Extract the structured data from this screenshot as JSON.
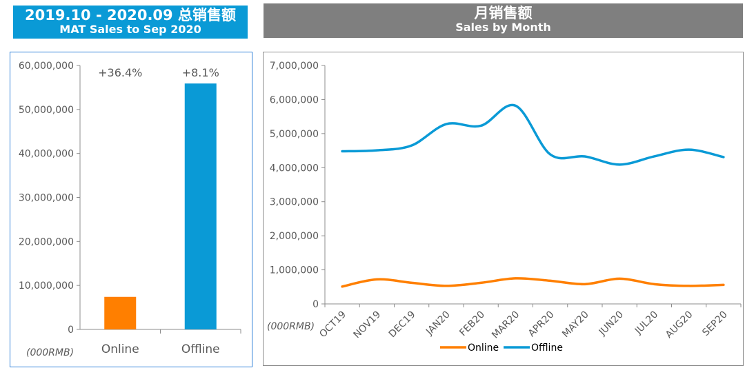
{
  "header_left": {
    "line1": "2019.10 - 2020.09 总销售额",
    "line2": "MAT Sales to Sep 2020"
  },
  "header_right": {
    "line1": "月销售额",
    "line2": "Sales by Month"
  },
  "colors": {
    "online": "#ff7f00",
    "offline": "#0a9ad6"
  },
  "chart_data": [
    {
      "type": "bar",
      "title": "MAT Sales to Sep 2020",
      "unit_label": "(000RMB)",
      "categories": [
        "Online",
        "Offline"
      ],
      "values": [
        7400000,
        55900000
      ],
      "data_labels": [
        "+36.4%",
        "+8.1%"
      ],
      "ylim": [
        0,
        60000000
      ],
      "yticks": [
        "0",
        "10,000,000",
        "20,000,000",
        "30,000,000",
        "40,000,000",
        "50,000,000",
        "60,000,000"
      ],
      "ytick_values": [
        0,
        10000000,
        20000000,
        30000000,
        40000000,
        50000000,
        60000000
      ]
    },
    {
      "type": "line",
      "title": "Sales by Month",
      "unit_label": "(000RMB)",
      "categories": [
        "OCT19",
        "NOV19",
        "DEC19",
        "JAN20",
        "FEB20",
        "MAR20",
        "APR20",
        "MAY20",
        "JUN20",
        "JUL20",
        "AUG20",
        "SEP20"
      ],
      "series": [
        {
          "name": "Online",
          "values": [
            510000,
            720000,
            620000,
            530000,
            620000,
            750000,
            680000,
            580000,
            740000,
            580000,
            530000,
            560000
          ]
        },
        {
          "name": "Offline",
          "values": [
            4480000,
            4510000,
            4650000,
            5280000,
            5230000,
            5820000,
            4390000,
            4330000,
            4090000,
            4330000,
            4530000,
            4310000
          ]
        }
      ],
      "ylim": [
        0,
        7000000
      ],
      "yticks": [
        "0",
        "1,000,000",
        "2,000,000",
        "3,000,000",
        "4,000,000",
        "5,000,000",
        "6,000,000",
        "7,000,000"
      ],
      "ytick_values": [
        0,
        1000000,
        2000000,
        3000000,
        4000000,
        5000000,
        6000000,
        7000000
      ],
      "legend_position": "bottom"
    }
  ]
}
